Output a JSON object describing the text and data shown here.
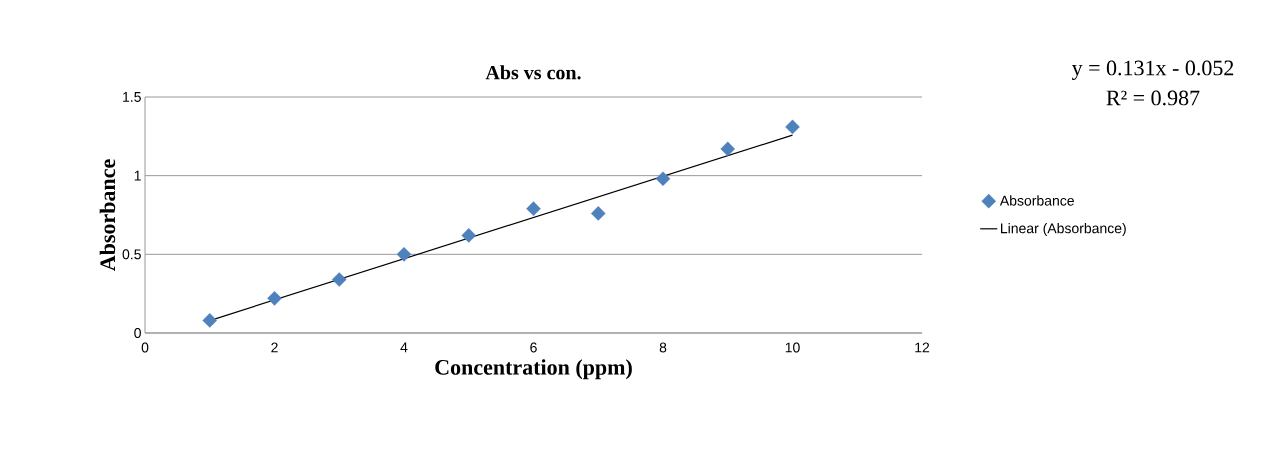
{
  "chart_data": {
    "type": "scatter",
    "title": "Abs vs con.",
    "xlabel": "Concentration (ppm)",
    "ylabel": "Absorbance",
    "x": [
      1,
      2,
      3,
      4,
      5,
      6,
      7,
      8,
      9,
      10
    ],
    "series": [
      {
        "name": "Absorbance",
        "color": "#4f81bd",
        "marker": "diamond",
        "values": [
          0.08,
          0.22,
          0.34,
          0.5,
          0.62,
          0.79,
          0.76,
          0.98,
          1.17,
          1.31
        ]
      },
      {
        "name": "Linear (Absorbance)",
        "type": "line",
        "color": "#000000",
        "marker": "none",
        "line_style": "solid",
        "x": [
          1,
          10
        ],
        "values": [
          0.079,
          1.258
        ]
      }
    ],
    "annotations": [
      "y = 0.131x - 0.052",
      "R² = 0.987"
    ],
    "xlim": [
      0,
      12
    ],
    "xticks": [
      0,
      2,
      4,
      6,
      8,
      10,
      12
    ],
    "ylim": [
      0,
      1.5
    ],
    "yticks": [
      0,
      0.5,
      1,
      1.5
    ],
    "grid": "y",
    "legend": "right"
  }
}
